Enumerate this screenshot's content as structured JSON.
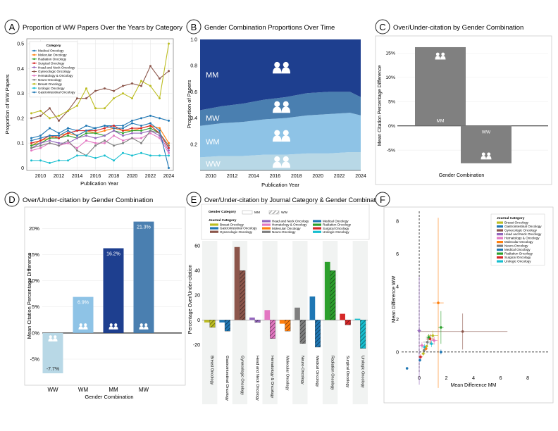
{
  "panels": {
    "A": {
      "letter": "A",
      "title": "Proportion of WW Papers Over the Years by Category"
    },
    "B": {
      "letter": "B",
      "title": "Gender Combination Proportions Over Time"
    },
    "C": {
      "letter": "C",
      "title": "Over/Under-citation by Gender Combination"
    },
    "D": {
      "letter": "D",
      "title": "Over/Under-citation by Gender Combination"
    },
    "E": {
      "letter": "E",
      "title": "Over/Under-citation by Journal Category & Gender Combination"
    },
    "F": {
      "letter": "F"
    }
  },
  "colors": {
    "Medical Oncology": "#1f77b4",
    "Molecular Oncology": "#ff7f0e",
    "Radiation Oncology": "#2ca02c",
    "Surgical Oncology": "#d62728",
    "Head and Neck Oncology": "#9467bd",
    "Gynecologic Oncology": "#8c564b",
    "Hematology & Oncology": "#e377c2",
    "Neuro-Oncology": "#7f7f7f",
    "Breast Oncology": "#bcbd22",
    "Urologic Oncology": "#17becf",
    "Gastrointestinal Oncology": "#1f77b4"
  },
  "chart_data": [
    {
      "id": "A",
      "type": "line",
      "title": "Proportion of WW Papers Over the Years by Category",
      "xlabel": "Publication Year",
      "ylabel": "Proportion of WW Papers",
      "xlim": [
        2008.5,
        2024.5
      ],
      "ylim": [
        -0.01,
        0.52
      ],
      "xticks": [
        2010,
        2012,
        2014,
        2016,
        2018,
        2020,
        2022,
        2024
      ],
      "yticks": [
        0,
        0.1,
        0.2,
        0.3,
        0.4,
        0.5
      ],
      "legend": {
        "title": "Category",
        "position": "top-left"
      },
      "x": [
        2009,
        2010,
        2011,
        2012,
        2013,
        2014,
        2015,
        2016,
        2017,
        2018,
        2019,
        2020,
        2021,
        2022,
        2023,
        2024
      ],
      "series": [
        {
          "name": "Medical Oncology",
          "values": [
            0.12,
            0.13,
            0.16,
            0.14,
            0.16,
            0.15,
            0.17,
            0.16,
            0.17,
            0.17,
            0.17,
            0.19,
            0.2,
            0.21,
            0.2,
            0.19
          ]
        },
        {
          "name": "Molecular Oncology",
          "values": [
            0.09,
            0.11,
            0.12,
            0.13,
            0.14,
            0.13,
            0.15,
            0.14,
            0.15,
            0.16,
            0.15,
            0.15,
            0.16,
            0.17,
            0.16,
            0.1
          ]
        },
        {
          "name": "Radiation Oncology",
          "values": [
            0.09,
            0.1,
            0.12,
            0.12,
            0.13,
            0.12,
            0.14,
            0.14,
            0.13,
            0.15,
            0.14,
            0.15,
            0.15,
            0.16,
            0.14,
            0.09
          ]
        },
        {
          "name": "Surgical Oncology",
          "values": [
            0.1,
            0.11,
            0.13,
            0.12,
            0.14,
            0.15,
            0.15,
            0.15,
            0.16,
            0.17,
            0.15,
            0.16,
            0.16,
            0.17,
            0.14,
            0.08
          ]
        },
        {
          "name": "Head and Neck Oncology",
          "values": [
            0.08,
            0.1,
            0.11,
            0.1,
            0.1,
            0.12,
            0.13,
            0.12,
            0.13,
            0.15,
            0.13,
            0.14,
            0.14,
            0.15,
            0.13,
            0.07
          ]
        },
        {
          "name": "Gynecologic Oncology",
          "values": [
            0.2,
            0.21,
            0.24,
            0.19,
            0.23,
            0.28,
            0.28,
            0.31,
            0.32,
            0.31,
            0.33,
            0.34,
            0.33,
            0.41,
            0.36,
            0.39
          ]
        },
        {
          "name": "Hematology & Oncology",
          "values": [
            0.07,
            0.08,
            0.1,
            0.09,
            0.1,
            0.08,
            0.11,
            0.1,
            0.1,
            0.13,
            0.11,
            0.12,
            0.12,
            0.14,
            0.12,
            0.06
          ]
        },
        {
          "name": "Neuro-Oncology",
          "values": [
            0.08,
            0.09,
            0.1,
            0.09,
            0.11,
            0.07,
            0.05,
            0.09,
            0.11,
            0.09,
            0.1,
            0.12,
            0.1,
            0.15,
            0.14,
            0.09
          ]
        },
        {
          "name": "Breast Oncology",
          "values": [
            0.22,
            0.23,
            0.2,
            0.21,
            0.23,
            0.25,
            0.32,
            0.24,
            0.24,
            0.28,
            0.3,
            0.28,
            0.35,
            0.33,
            0.28,
            0.5
          ]
        },
        {
          "name": "Urologic Oncology",
          "values": [
            0.03,
            0.03,
            0.02,
            0.03,
            0.03,
            0.05,
            0.05,
            0.04,
            0.05,
            0.03,
            0.06,
            0.05,
            0.06,
            0.05,
            0.05,
            0.05
          ]
        },
        {
          "name": "Gastrointestinal Oncology",
          "values": [
            0.11,
            0.12,
            0.13,
            0.13,
            0.15,
            0.13,
            0.15,
            0.16,
            0.17,
            0.16,
            0.16,
            0.18,
            0.17,
            0.18,
            0.15,
            0.0
          ]
        }
      ]
    },
    {
      "id": "B",
      "type": "area",
      "title": "Gender Combination Proportions Over Time",
      "xlabel": "Publication Year",
      "ylabel": "Proportion of Papers",
      "xlim": [
        2009,
        2024
      ],
      "ylim": [
        0,
        1
      ],
      "xticks": [
        2010,
        2012,
        2014,
        2016,
        2018,
        2020,
        2022,
        2024
      ],
      "yticks": [
        0,
        0.2,
        0.4,
        0.6,
        0.8,
        1.0
      ],
      "x": [
        2009,
        2011,
        2013,
        2015,
        2017,
        2019,
        2021,
        2023,
        2024
      ],
      "series": [
        {
          "name": "WW",
          "values": [
            0.1,
            0.11,
            0.11,
            0.12,
            0.12,
            0.13,
            0.13,
            0.14,
            0.14
          ],
          "color": "#b8d8e6"
        },
        {
          "name": "WM",
          "values": [
            0.24,
            0.25,
            0.26,
            0.27,
            0.28,
            0.29,
            0.3,
            0.3,
            0.28
          ],
          "color": "#8ec3e6"
        },
        {
          "name": "MW",
          "values": [
            0.12,
            0.13,
            0.14,
            0.15,
            0.16,
            0.17,
            0.17,
            0.16,
            0.14
          ],
          "color": "#4a7fb0"
        },
        {
          "name": "MM",
          "values": [
            0.54,
            0.51,
            0.49,
            0.46,
            0.44,
            0.41,
            0.4,
            0.4,
            0.44
          ],
          "color": "#1e3f8f"
        }
      ]
    },
    {
      "id": "C",
      "type": "bar",
      "title": "Over/Under-citation by Gender Combination",
      "xlabel": "Gender Combination",
      "ylabel": "Mean Citation Percentage Difference",
      "categories": [
        "MM",
        "WW"
      ],
      "values": [
        16.2,
        -7.7
      ],
      "ylim": [
        -8.3,
        17.5
      ],
      "yticks": [
        -5,
        0,
        5,
        10,
        15
      ],
      "ytick_labels": [
        "-5%",
        "0%",
        "5%",
        "10%",
        "15%"
      ],
      "bar_labels": [
        "MM",
        "WW"
      ]
    },
    {
      "id": "D",
      "type": "bar",
      "title": "Over/Under-citation by Gender Combination",
      "xlabel": "Gender Combination",
      "ylabel": "Mean Citation Percentage Difference",
      "categories": [
        "WW",
        "WM",
        "MM",
        "MW"
      ],
      "values": [
        -7.7,
        6.9,
        16.2,
        21.3
      ],
      "value_labels": [
        "-7.7%",
        "6.9%",
        "16.2%",
        "21.3%"
      ],
      "colors": [
        "#b8d8e6",
        "#8ec3e6",
        "#1e3f8f",
        "#4a7fb0"
      ],
      "ylim": [
        -8.5,
        23
      ],
      "yticks": [
        -5,
        0,
        5,
        10,
        15,
        20
      ],
      "ytick_labels": [
        "-5%",
        "0%",
        "5%",
        "10%",
        "15%",
        "20%"
      ]
    },
    {
      "id": "E",
      "type": "bar",
      "title": "Over/Under-citation by Journal Category & Gender Combination",
      "ylabel": "Percentage Over/Under-citation",
      "legend": {
        "gender_title": "Gender Category",
        "gender_entries": [
          "MM",
          "WW"
        ],
        "journal_title": "Journal Category",
        "journal_entries": [
          "Breast Oncology",
          "Gastrointestinal Oncology",
          "Gynecologic Oncology",
          "Head and Neck Oncology",
          "Hematology & Oncology",
          "Molecular Oncology",
          "Neuro-Oncology",
          "Medical Oncology",
          "Radiation Oncology",
          "Surgical Oncology",
          "Urologic Oncology"
        ]
      },
      "categories": [
        "Breast Oncology",
        "Gastrointestinal Oncology",
        "Gynecologic Oncology",
        "Head and Neck Oncology",
        "Hematology & Oncology",
        "Molecular Oncology",
        "Neuro-Oncology",
        "Medical Oncology",
        "Radiation Oncology",
        "Surgical Oncology",
        "Urologic Oncology"
      ],
      "series": [
        {
          "name": "MM",
          "values": [
            -2,
            -2,
            59,
            2,
            8,
            -3,
            10,
            19,
            47,
            5,
            1
          ]
        },
        {
          "name": "WW",
          "values": [
            -6,
            -9,
            40,
            -2,
            -15,
            -9,
            -19,
            -22,
            40,
            -4,
            -23
          ]
        }
      ],
      "ylim": [
        -26,
        64
      ],
      "yticks": [
        -20,
        0,
        20,
        40,
        60
      ]
    },
    {
      "id": "F",
      "type": "scatter",
      "xlabel": "Mean Difference MM",
      "ylabel": "Mean Difference WW",
      "xlim": [
        -1.3,
        9.5
      ],
      "ylim": [
        -1.3,
        8.6
      ],
      "xticks": [
        0,
        2,
        4,
        6,
        8
      ],
      "yticks": [
        0,
        2,
        4,
        6,
        8
      ],
      "legend": {
        "title": "Journal Category",
        "position": "top-right",
        "entries": [
          "Breast Oncology",
          "Gastrointestinal Oncology",
          "Gynecologic Oncology",
          "Head and Neck Oncology",
          "Hematology & Oncology",
          "Molecular Oncology",
          "Neuro-Oncology",
          "Medical Oncology",
          "Radiation Oncology",
          "Surgical Oncology",
          "Urologic Oncology"
        ]
      },
      "points": [
        {
          "category": "Gynecologic Oncology",
          "x": 3.2,
          "y": 1.25,
          "xerr": 3.3,
          "yerr": 1.1
        },
        {
          "category": "Molecular Oncology",
          "x": 1.4,
          "y": 3.0,
          "xerr": 0.4,
          "yerr": 5.2
        },
        {
          "category": "Radiation Oncology",
          "x": 1.6,
          "y": 1.5,
          "xerr": 0.2,
          "yerr": 1.0
        },
        {
          "category": "Head and Neck Oncology",
          "x": 0.0,
          "y": 1.3,
          "xerr": 0.15,
          "yerr": 3.3
        },
        {
          "category": "Medical Oncology",
          "x": 1.6,
          "y": 0.0,
          "xerr": 0.1,
          "yerr": 0.15
        },
        {
          "category": "Gastrointestinal Oncology",
          "x": -0.9,
          "y": -1.0,
          "xerr": 0.05,
          "yerr": 0.05
        },
        {
          "category": "Breast Oncology",
          "x": 1.0,
          "y": 1.0,
          "xerr": 0.4,
          "yerr": 0.3
        },
        {
          "category": "Surgical Oncology",
          "x": 0.8,
          "y": 0.8,
          "xerr": 0.3,
          "yerr": 0.3
        },
        {
          "category": "Urologic Oncology",
          "x": 0.4,
          "y": 0.3,
          "xerr": 0.2,
          "yerr": 0.2
        },
        {
          "category": "Neuro-Oncology",
          "x": 0.6,
          "y": 0.6,
          "xerr": 0.3,
          "yerr": 0.3
        },
        {
          "category": "Hematology & Oncology",
          "x": 0.2,
          "y": 0.4,
          "xerr": 0.2,
          "yerr": 0.2
        },
        {
          "category": "Breast Oncology",
          "x": 0.3,
          "y": -0.1,
          "xerr": 0.15,
          "yerr": 0.15
        },
        {
          "category": "Molecular Oncology",
          "x": 0.5,
          "y": 0.2,
          "xerr": 0.15,
          "yerr": 0.15
        },
        {
          "category": "Radiation Oncology",
          "x": 0.7,
          "y": 0.9,
          "xerr": 0.2,
          "yerr": 0.2
        },
        {
          "category": "Surgical Oncology",
          "x": 0.1,
          "y": -0.3,
          "xerr": 0.15,
          "yerr": 0.15
        },
        {
          "category": "Urologic Oncology",
          "x": 0.9,
          "y": 0.5,
          "xerr": 0.2,
          "yerr": 0.2
        },
        {
          "category": "Neuro-Oncology",
          "x": 0.35,
          "y": 0.1,
          "xerr": 0.1,
          "yerr": 0.1
        },
        {
          "category": "Gastrointestinal Oncology",
          "x": 0.05,
          "y": -0.5,
          "xerr": 0.1,
          "yerr": 0.1
        },
        {
          "category": "Hematology & Oncology",
          "x": 1.1,
          "y": 0.7,
          "xerr": 0.25,
          "yerr": 0.25
        },
        {
          "category": "Breast Oncology",
          "x": 0.55,
          "y": 0.35,
          "xerr": 0.1,
          "yerr": 0.1
        }
      ]
    }
  ]
}
